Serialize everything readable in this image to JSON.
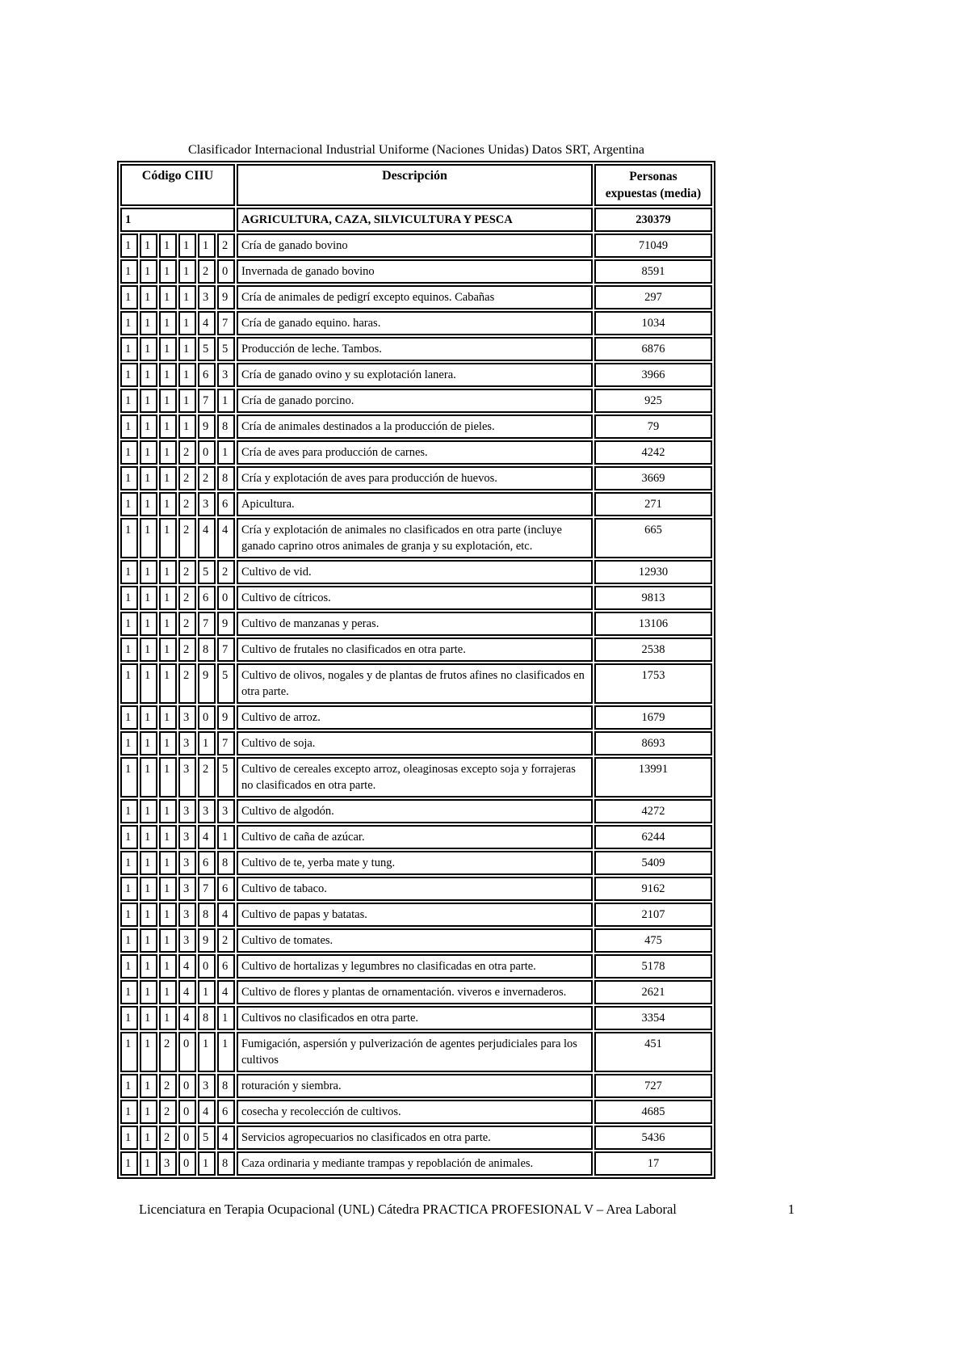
{
  "title": "Clasificador Internacional Industrial Uniforme (Naciones Unidas) Datos SRT, Argentina",
  "table": {
    "headers": {
      "code": "Código CIIU",
      "description": "Descripción",
      "persons_line1": "Personas",
      "persons_line2": "expuestas (media)"
    },
    "section_row": {
      "code": "1",
      "description": "AGRICULTURA, CAZA, SILVICULTURA Y PESCA",
      "value": "230379"
    },
    "rows": [
      {
        "code": "111112",
        "description": "Cría de ganado bovino",
        "value": "71049"
      },
      {
        "code": "111120",
        "description": "Invernada de ganado bovino",
        "value": "8591"
      },
      {
        "code": "111139",
        "description": "Cría de animales de pedigrí excepto equinos. Cabañas",
        "value": "297"
      },
      {
        "code": "111147",
        "description": "Cría de ganado equino. haras.",
        "value": "1034"
      },
      {
        "code": "111155",
        "description": "Producción de leche. Tambos.",
        "value": "6876"
      },
      {
        "code": "111163",
        "description": "Cría de ganado ovino y su explotación lanera.",
        "value": "3966"
      },
      {
        "code": "111171",
        "description": "Cría de ganado porcino.",
        "value": "925"
      },
      {
        "code": "111198",
        "description": "Cría de animales destinados a la producción de pieles.",
        "value": "79"
      },
      {
        "code": "111201",
        "description": "Cría de aves para producción de carnes.",
        "value": "4242"
      },
      {
        "code": "111228",
        "description": "Cría y explotación de aves para producción de huevos.",
        "value": "3669"
      },
      {
        "code": "111236",
        "description": "Apicultura.",
        "value": "271"
      },
      {
        "code": "111244",
        "description": "Cría y explotación de animales no clasificados en otra parte (incluye ganado caprino otros animales de granja y su explotación, etc.",
        "value": "665"
      },
      {
        "code": "111252",
        "description": "Cultivo de vid.",
        "value": "12930"
      },
      {
        "code": "111260",
        "description": "Cultivo de cítricos.",
        "value": "9813"
      },
      {
        "code": "111279",
        "description": "Cultivo de manzanas y peras.",
        "value": "13106"
      },
      {
        "code": "111287",
        "description": "Cultivo de frutales no clasificados en otra parte.",
        "value": "2538"
      },
      {
        "code": "111295",
        "description": "Cultivo de olivos, nogales y de plantas de frutos afines no clasificados en otra parte.",
        "value": "1753"
      },
      {
        "code": "111309",
        "description": "Cultivo de arroz.",
        "value": "1679"
      },
      {
        "code": "111317",
        "description": "Cultivo de soja.",
        "value": "8693"
      },
      {
        "code": "111325",
        "description": "Cultivo de cereales excepto arroz, oleaginosas excepto soja y forrajeras no clasificados en otra parte.",
        "value": "13991"
      },
      {
        "code": "111333",
        "description": "Cultivo de algodón.",
        "value": "4272"
      },
      {
        "code": "111341",
        "description": "Cultivo de caña de azúcar.",
        "value": "6244"
      },
      {
        "code": "111368",
        "description": "Cultivo de te, yerba mate y tung.",
        "value": "5409"
      },
      {
        "code": "111376",
        "description": "Cultivo de tabaco.",
        "value": "9162"
      },
      {
        "code": "111384",
        "description": "Cultivo de papas y batatas.",
        "value": "2107"
      },
      {
        "code": "111392",
        "description": "Cultivo de tomates.",
        "value": "475"
      },
      {
        "code": "111406",
        "description": "Cultivo de hortalizas y legumbres no clasificadas en otra parte.",
        "value": "5178"
      },
      {
        "code": "111414",
        "description": "Cultivo de flores y plantas de ornamentación. viveros e invernaderos.",
        "value": "2621"
      },
      {
        "code": "111481",
        "description": "Cultivos no clasificados en otra parte.",
        "value": "3354"
      },
      {
        "code": "112011",
        "description": "Fumigación, aspersión y pulverización de agentes perjudiciales para los cultivos",
        "value": "451"
      },
      {
        "code": "112038",
        "description": "roturación y siembra.",
        "value": "727"
      },
      {
        "code": "112046",
        "description": "cosecha y recolección de cultivos.",
        "value": "4685"
      },
      {
        "code": "112054",
        "description": "Servicios agropecuarios no clasificados en otra parte.",
        "value": "5436"
      },
      {
        "code": "113018",
        "description": "Caza ordinaria y mediante trampas y repoblación de animales.",
        "value": "17"
      }
    ]
  },
  "footer": {
    "text": "Licenciatura en Terapia Ocupacional (UNL) Cátedra PRACTICA PROFESIONAL V – Area Laboral",
    "page": "1"
  }
}
